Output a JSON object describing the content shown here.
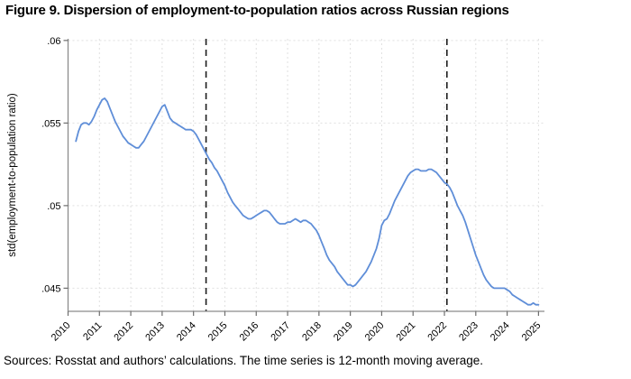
{
  "title": "Figure 9. Dispersion of employment-to-population ratios across Russian regions",
  "source_note": "Sources: Rosstat and authors’ calculations. The time series is 12-month moving average.",
  "colors": {
    "line": "#5f8ed8",
    "event_line": "#1c1c1c",
    "grid": "#e0e0e0",
    "axis": "#8c8c8c",
    "tick": "#6e6e6e",
    "text": "#000000",
    "background": "#ffffff"
  },
  "chart_data": {
    "type": "line",
    "title": "Figure 9. Dispersion of employment-to-population ratios across Russian regions",
    "xlabel": "",
    "ylabel": "std(employment-to-population ratio)",
    "xlim": [
      2010,
      2025.19
    ],
    "ylim": [
      0.0436,
      0.0601
    ],
    "grid": true,
    "legend": "none",
    "x_ticks": [
      {
        "value": 2010,
        "label": "2010"
      },
      {
        "value": 2011,
        "label": "2011"
      },
      {
        "value": 2012,
        "label": "2012"
      },
      {
        "value": 2013,
        "label": "2013"
      },
      {
        "value": 2014,
        "label": "2014"
      },
      {
        "value": 2015,
        "label": "2015"
      },
      {
        "value": 2016,
        "label": "2016"
      },
      {
        "value": 2017,
        "label": "2017"
      },
      {
        "value": 2018,
        "label": "2018"
      },
      {
        "value": 2019,
        "label": "2019"
      },
      {
        "value": 2020,
        "label": "2020"
      },
      {
        "value": 2021,
        "label": "2021"
      },
      {
        "value": 2022,
        "label": "2022"
      },
      {
        "value": 2023,
        "label": "2023"
      },
      {
        "value": 2024,
        "label": "2024"
      },
      {
        "value": 2025,
        "label": "2025"
      }
    ],
    "y_ticks": [
      {
        "value": 0.045,
        "label": ".045"
      },
      {
        "value": 0.05,
        "label": ".05"
      },
      {
        "value": 0.055,
        "label": ".055"
      },
      {
        "value": 0.06,
        "label": ".06"
      }
    ],
    "event_lines": [
      {
        "x": 2014.4,
        "style": "dashed"
      },
      {
        "x": 2022.08,
        "style": "dashed"
      }
    ],
    "series": [
      {
        "name": "series",
        "points": [
          [
            2010.25,
            0.0539
          ],
          [
            2010.333,
            0.0545
          ],
          [
            2010.417,
            0.0549
          ],
          [
            2010.5,
            0.055
          ],
          [
            2010.583,
            0.055
          ],
          [
            2010.667,
            0.0549
          ],
          [
            2010.75,
            0.0551
          ],
          [
            2010.833,
            0.0554
          ],
          [
            2010.917,
            0.0558
          ],
          [
            2011.0,
            0.0561
          ],
          [
            2011.083,
            0.0564
          ],
          [
            2011.167,
            0.0565
          ],
          [
            2011.25,
            0.0563
          ],
          [
            2011.333,
            0.0559
          ],
          [
            2011.417,
            0.0555
          ],
          [
            2011.5,
            0.0551
          ],
          [
            2011.583,
            0.0548
          ],
          [
            2011.667,
            0.0545
          ],
          [
            2011.75,
            0.0542
          ],
          [
            2011.833,
            0.054
          ],
          [
            2011.917,
            0.0538
          ],
          [
            2012.0,
            0.0537
          ],
          [
            2012.083,
            0.0536
          ],
          [
            2012.167,
            0.0535
          ],
          [
            2012.25,
            0.0535
          ],
          [
            2012.333,
            0.0537
          ],
          [
            2012.417,
            0.0539
          ],
          [
            2012.5,
            0.0542
          ],
          [
            2012.583,
            0.0545
          ],
          [
            2012.667,
            0.0548
          ],
          [
            2012.75,
            0.0551
          ],
          [
            2012.833,
            0.0554
          ],
          [
            2012.917,
            0.0557
          ],
          [
            2013.0,
            0.056
          ],
          [
            2013.083,
            0.0561
          ],
          [
            2013.167,
            0.0557
          ],
          [
            2013.25,
            0.0553
          ],
          [
            2013.333,
            0.0551
          ],
          [
            2013.417,
            0.055
          ],
          [
            2013.5,
            0.0549
          ],
          [
            2013.583,
            0.0548
          ],
          [
            2013.667,
            0.0547
          ],
          [
            2013.75,
            0.0546
          ],
          [
            2013.833,
            0.0546
          ],
          [
            2013.917,
            0.0546
          ],
          [
            2014.0,
            0.0545
          ],
          [
            2014.083,
            0.0543
          ],
          [
            2014.167,
            0.054
          ],
          [
            2014.25,
            0.0537
          ],
          [
            2014.333,
            0.0534
          ],
          [
            2014.417,
            0.0531
          ],
          [
            2014.5,
            0.0528
          ],
          [
            2014.583,
            0.0526
          ],
          [
            2014.667,
            0.0523
          ],
          [
            2014.75,
            0.0521
          ],
          [
            2014.833,
            0.0518
          ],
          [
            2014.917,
            0.0515
          ],
          [
            2015.0,
            0.0512
          ],
          [
            2015.083,
            0.0508
          ],
          [
            2015.167,
            0.0505
          ],
          [
            2015.25,
            0.0502
          ],
          [
            2015.333,
            0.05
          ],
          [
            2015.417,
            0.0498
          ],
          [
            2015.5,
            0.0496
          ],
          [
            2015.583,
            0.0494
          ],
          [
            2015.667,
            0.0493
          ],
          [
            2015.75,
            0.0492
          ],
          [
            2015.833,
            0.0492
          ],
          [
            2015.917,
            0.0493
          ],
          [
            2016.0,
            0.0494
          ],
          [
            2016.083,
            0.0495
          ],
          [
            2016.167,
            0.0496
          ],
          [
            2016.25,
            0.0497
          ],
          [
            2016.333,
            0.0497
          ],
          [
            2016.417,
            0.0496
          ],
          [
            2016.5,
            0.0494
          ],
          [
            2016.583,
            0.0492
          ],
          [
            2016.667,
            0.049
          ],
          [
            2016.75,
            0.0489
          ],
          [
            2016.833,
            0.0489
          ],
          [
            2016.917,
            0.0489
          ],
          [
            2017.0,
            0.049
          ],
          [
            2017.083,
            0.049
          ],
          [
            2017.167,
            0.0491
          ],
          [
            2017.25,
            0.0492
          ],
          [
            2017.333,
            0.0491
          ],
          [
            2017.417,
            0.049
          ],
          [
            2017.5,
            0.0491
          ],
          [
            2017.583,
            0.0491
          ],
          [
            2017.667,
            0.049
          ],
          [
            2017.75,
            0.0489
          ],
          [
            2017.833,
            0.0487
          ],
          [
            2017.917,
            0.0485
          ],
          [
            2018.0,
            0.0482
          ],
          [
            2018.083,
            0.0478
          ],
          [
            2018.167,
            0.0474
          ],
          [
            2018.25,
            0.047
          ],
          [
            2018.333,
            0.0467
          ],
          [
            2018.417,
            0.0465
          ],
          [
            2018.5,
            0.0463
          ],
          [
            2018.583,
            0.046
          ],
          [
            2018.667,
            0.0458
          ],
          [
            2018.75,
            0.0456
          ],
          [
            2018.833,
            0.0454
          ],
          [
            2018.917,
            0.0452
          ],
          [
            2019.0,
            0.0452
          ],
          [
            2019.083,
            0.0451
          ],
          [
            2019.167,
            0.0452
          ],
          [
            2019.25,
            0.0454
          ],
          [
            2019.333,
            0.0456
          ],
          [
            2019.417,
            0.0458
          ],
          [
            2019.5,
            0.046
          ],
          [
            2019.583,
            0.0463
          ],
          [
            2019.667,
            0.0466
          ],
          [
            2019.75,
            0.047
          ],
          [
            2019.833,
            0.0474
          ],
          [
            2019.917,
            0.048
          ],
          [
            2020.0,
            0.0488
          ],
          [
            2020.083,
            0.0491
          ],
          [
            2020.167,
            0.0492
          ],
          [
            2020.25,
            0.0495
          ],
          [
            2020.333,
            0.0499
          ],
          [
            2020.417,
            0.0503
          ],
          [
            2020.5,
            0.0506
          ],
          [
            2020.583,
            0.0509
          ],
          [
            2020.667,
            0.0512
          ],
          [
            2020.75,
            0.0515
          ],
          [
            2020.833,
            0.0518
          ],
          [
            2020.917,
            0.052
          ],
          [
            2021.0,
            0.0521
          ],
          [
            2021.083,
            0.0522
          ],
          [
            2021.167,
            0.0522
          ],
          [
            2021.25,
            0.0521
          ],
          [
            2021.333,
            0.0521
          ],
          [
            2021.417,
            0.0521
          ],
          [
            2021.5,
            0.0522
          ],
          [
            2021.583,
            0.0522
          ],
          [
            2021.667,
            0.0521
          ],
          [
            2021.75,
            0.052
          ],
          [
            2021.833,
            0.0518
          ],
          [
            2021.917,
            0.0516
          ],
          [
            2022.0,
            0.0514
          ],
          [
            2022.083,
            0.0513
          ],
          [
            2022.167,
            0.0511
          ],
          [
            2022.25,
            0.0508
          ],
          [
            2022.333,
            0.0504
          ],
          [
            2022.417,
            0.05
          ],
          [
            2022.5,
            0.0497
          ],
          [
            2022.583,
            0.0494
          ],
          [
            2022.667,
            0.049
          ],
          [
            2022.75,
            0.0485
          ],
          [
            2022.833,
            0.048
          ],
          [
            2022.917,
            0.0475
          ],
          [
            2023.0,
            0.047
          ],
          [
            2023.083,
            0.0466
          ],
          [
            2023.167,
            0.0462
          ],
          [
            2023.25,
            0.0458
          ],
          [
            2023.333,
            0.0455
          ],
          [
            2023.417,
            0.0453
          ],
          [
            2023.5,
            0.0451
          ],
          [
            2023.583,
            0.045
          ],
          [
            2023.667,
            0.045
          ],
          [
            2023.75,
            0.045
          ],
          [
            2023.833,
            0.045
          ],
          [
            2023.917,
            0.045
          ],
          [
            2024.0,
            0.0449
          ],
          [
            2024.083,
            0.0448
          ],
          [
            2024.167,
            0.0446
          ],
          [
            2024.25,
            0.0445
          ],
          [
            2024.333,
            0.0444
          ],
          [
            2024.417,
            0.0443
          ],
          [
            2024.5,
            0.0442
          ],
          [
            2024.583,
            0.0441
          ],
          [
            2024.667,
            0.044
          ],
          [
            2024.75,
            0.044
          ],
          [
            2024.833,
            0.0441
          ],
          [
            2024.917,
            0.044
          ],
          [
            2025.0,
            0.044
          ]
        ]
      }
    ]
  }
}
